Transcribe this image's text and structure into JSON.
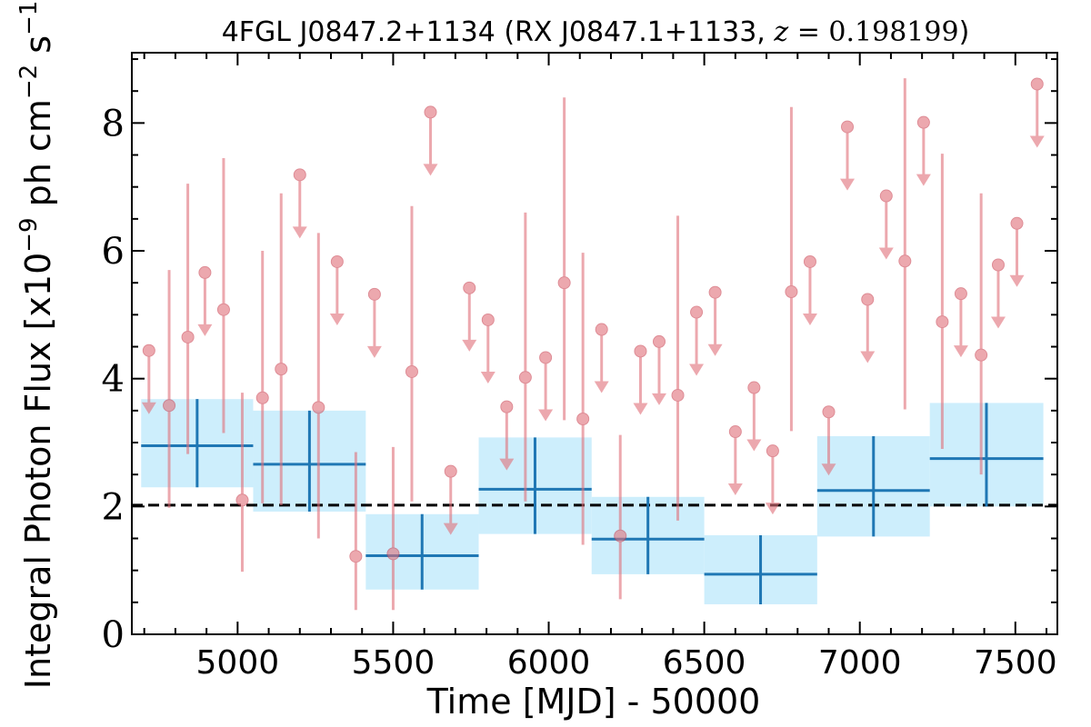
{
  "chart_data": {
    "type": "scatter",
    "title": {
      "prefix": "4FGL J0847.2+1134 (RX J0847.1+1133, ",
      "z_symbol": "z",
      "equals": " = ",
      "z_value": "0.198199",
      "suffix": ")"
    },
    "xlabel": "Time [MJD] - 50000",
    "ylabel": {
      "prefix": "Integral Photon Flux [x10",
      "exp1": "−9",
      "middle": " ph cm",
      "exp2": "−2",
      "s": " s",
      "exp3": "−1",
      "suffix": "]"
    },
    "xlim": [
      4660,
      7635
    ],
    "ylim": [
      0,
      9.1
    ],
    "xticks": [
      5000,
      5500,
      6000,
      6500,
      7000,
      7500
    ],
    "yticks": [
      0,
      2,
      4,
      6,
      8
    ],
    "grid": false,
    "reference_level": 2.02,
    "colors": {
      "points": "#e0707a",
      "band": "#cdeefc",
      "binned": "#1f77b4",
      "reference": "#000000"
    },
    "detections": [
      {
        "x": 4780,
        "y": 3.58,
        "ylo": 1.98,
        "yhi": 5.7
      },
      {
        "x": 4840,
        "y": 4.65,
        "ylo": 2.82,
        "yhi": 7.05
      },
      {
        "x": 4955,
        "y": 5.08,
        "ylo": 3.15,
        "yhi": 7.45
      },
      {
        "x": 5015,
        "y": 2.1,
        "ylo": 0.98,
        "yhi": 3.78
      },
      {
        "x": 5080,
        "y": 3.7,
        "ylo": 2.05,
        "yhi": 6.0
      },
      {
        "x": 5140,
        "y": 4.15,
        "ylo": 2.02,
        "yhi": 6.9
      },
      {
        "x": 5260,
        "y": 3.55,
        "ylo": 1.5,
        "yhi": 6.28
      },
      {
        "x": 5380,
        "y": 1.22,
        "ylo": 0.38,
        "yhi": 2.85
      },
      {
        "x": 5500,
        "y": 1.26,
        "ylo": 0.38,
        "yhi": 2.93
      },
      {
        "x": 5560,
        "y": 4.11,
        "ylo": 2.08,
        "yhi": 6.7
      },
      {
        "x": 5925,
        "y": 4.02,
        "ylo": 2.08,
        "yhi": 6.6
      },
      {
        "x": 6050,
        "y": 5.5,
        "ylo": 3.35,
        "yhi": 8.4
      },
      {
        "x": 6110,
        "y": 3.37,
        "ylo": 1.4,
        "yhi": 5.97
      },
      {
        "x": 6230,
        "y": 1.54,
        "ylo": 0.55,
        "yhi": 3.12
      },
      {
        "x": 6415,
        "y": 3.74,
        "ylo": 1.78,
        "yhi": 6.55
      },
      {
        "x": 6780,
        "y": 5.36,
        "ylo": 3.18,
        "yhi": 8.25
      },
      {
        "x": 7145,
        "y": 5.84,
        "ylo": 3.52,
        "yhi": 8.7
      },
      {
        "x": 7265,
        "y": 4.89,
        "ylo": 2.9,
        "yhi": 7.52
      },
      {
        "x": 7390,
        "y": 4.37,
        "ylo": 2.5,
        "yhi": 6.9
      }
    ],
    "upper_limits": [
      {
        "x": 4715,
        "y": 4.44
      },
      {
        "x": 4895,
        "y": 5.66
      },
      {
        "x": 5200,
        "y": 7.19
      },
      {
        "x": 5320,
        "y": 5.83
      },
      {
        "x": 5440,
        "y": 5.32
      },
      {
        "x": 5620,
        "y": 8.17
      },
      {
        "x": 5685,
        "y": 2.55
      },
      {
        "x": 5745,
        "y": 5.42
      },
      {
        "x": 5805,
        "y": 4.92
      },
      {
        "x": 5865,
        "y": 3.56
      },
      {
        "x": 5990,
        "y": 4.33
      },
      {
        "x": 6170,
        "y": 4.77
      },
      {
        "x": 6295,
        "y": 4.43
      },
      {
        "x": 6355,
        "y": 4.58
      },
      {
        "x": 6475,
        "y": 5.04
      },
      {
        "x": 6535,
        "y": 5.35
      },
      {
        "x": 6600,
        "y": 3.17
      },
      {
        "x": 6660,
        "y": 3.86
      },
      {
        "x": 6720,
        "y": 2.87
      },
      {
        "x": 6840,
        "y": 5.83
      },
      {
        "x": 6900,
        "y": 3.48
      },
      {
        "x": 6960,
        "y": 7.94
      },
      {
        "x": 7025,
        "y": 5.24
      },
      {
        "x": 7085,
        "y": 6.86
      },
      {
        "x": 7205,
        "y": 8.01
      },
      {
        "x": 7325,
        "y": 5.33
      },
      {
        "x": 7445,
        "y": 5.78
      },
      {
        "x": 7505,
        "y": 6.43
      },
      {
        "x": 7570,
        "y": 8.61
      }
    ],
    "binned": [
      {
        "x0": 4690,
        "x1": 5050,
        "y": 2.95,
        "ylo": 2.3,
        "yhi": 3.68,
        "xc": 4870
      },
      {
        "x0": 5050,
        "x1": 5412,
        "y": 2.66,
        "ylo": 1.92,
        "yhi": 3.5,
        "xc": 5231
      },
      {
        "x0": 5412,
        "x1": 5775,
        "y": 1.23,
        "ylo": 0.7,
        "yhi": 1.88,
        "xc": 5593
      },
      {
        "x0": 5775,
        "x1": 6138,
        "y": 2.27,
        "ylo": 1.57,
        "yhi": 3.08,
        "xc": 5956
      },
      {
        "x0": 6138,
        "x1": 6500,
        "y": 1.49,
        "ylo": 0.94,
        "yhi": 2.15,
        "xc": 6319
      },
      {
        "x0": 6500,
        "x1": 6863,
        "y": 0.94,
        "ylo": 0.47,
        "yhi": 1.55,
        "xc": 6681
      },
      {
        "x0": 6863,
        "x1": 7225,
        "y": 2.25,
        "ylo": 1.53,
        "yhi": 3.1,
        "xc": 7044
      },
      {
        "x0": 7225,
        "x1": 7590,
        "y": 2.75,
        "ylo": 2.0,
        "yhi": 3.62,
        "xc": 7407
      }
    ]
  }
}
